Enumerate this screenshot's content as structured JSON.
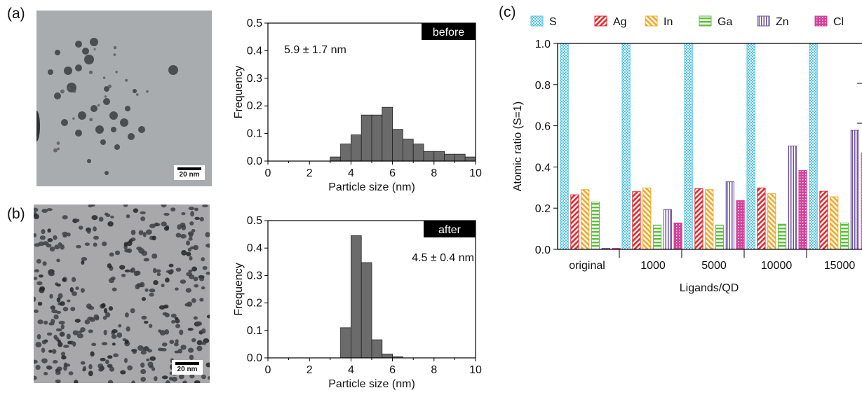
{
  "panel_labels": {
    "a": "(a)",
    "b": "(b)",
    "c": "(c)"
  },
  "tem_images": [
    {
      "panel": "a",
      "scale_bar_label": "20 nm"
    },
    {
      "panel": "b",
      "scale_bar_label": "20 nm"
    }
  ],
  "colors": {
    "S": "#4fc3e8",
    "Ag": "#e8262b",
    "In": "#f6a623",
    "Ga": "#5cbf3a",
    "Zn": "#6b4fa3",
    "Cl": "#d4409a",
    "hist_bar": "#6b6b6b"
  },
  "chart_data": [
    {
      "type": "bar",
      "panel": "a",
      "tag": "before",
      "annotation": "5.9 ± 1.7 nm",
      "xlabel": "Particle size (nm)",
      "ylabel": "Frequency",
      "xlim": [
        0,
        10
      ],
      "ylim": [
        0,
        0.5
      ],
      "xticks": [
        0,
        2,
        4,
        6,
        8,
        10
      ],
      "yticks": [
        0.0,
        0.1,
        0.2,
        0.3,
        0.4,
        0.5
      ],
      "ytick_labels": [
        "0.0",
        "0.1",
        "0.2",
        "0.3",
        "0.4",
        "0.5"
      ],
      "bin_width": 0.5,
      "bin_starts": [
        3.0,
        3.5,
        4.0,
        4.5,
        5.0,
        5.5,
        6.0,
        6.5,
        7.0,
        7.5,
        8.0,
        8.5,
        9.0,
        9.5
      ],
      "values": [
        0.015,
        0.062,
        0.095,
        0.167,
        0.167,
        0.195,
        0.115,
        0.08,
        0.062,
        0.035,
        0.035,
        0.025,
        0.025,
        0.015
      ]
    },
    {
      "type": "bar",
      "panel": "b",
      "tag": "after",
      "annotation": "4.5 ± 0.4 nm",
      "xlabel": "Particle size (nm)",
      "ylabel": "Frequency",
      "xlim": [
        0,
        10
      ],
      "ylim": [
        0,
        0.5
      ],
      "xticks": [
        0,
        2,
        4,
        6,
        8,
        10
      ],
      "yticks": [
        0.0,
        0.1,
        0.2,
        0.3,
        0.4,
        0.5
      ],
      "ytick_labels": [
        "0.0",
        "0.1",
        "0.2",
        "0.3",
        "0.4",
        "0.5"
      ],
      "bin_width": 0.5,
      "bin_starts": [
        3.5,
        4.0,
        4.5,
        5.0,
        5.5,
        6.0
      ],
      "values": [
        0.11,
        0.445,
        0.347,
        0.066,
        0.014,
        0.004
      ]
    },
    {
      "type": "bar",
      "panel": "c",
      "xlabel": "Ligands/QD",
      "ylabel": "Atomic ratio (S=1)",
      "ylim": [
        0,
        1.0
      ],
      "yticks": [
        0.0,
        0.2,
        0.4,
        0.6,
        0.8,
        1.0
      ],
      "ytick_labels": [
        "0.0",
        "0.2",
        "0.4",
        "0.6",
        "0.8",
        "1.0"
      ],
      "categories": [
        "original",
        "1000",
        "5000",
        "10000",
        "15000"
      ],
      "legend_position": "top",
      "series": [
        {
          "name": "S",
          "values": [
            1.0,
            1.0,
            1.0,
            1.0,
            1.0
          ]
        },
        {
          "name": "Ag",
          "values": [
            0.265,
            0.28,
            0.295,
            0.298,
            0.282
          ]
        },
        {
          "name": "In",
          "values": [
            0.29,
            0.298,
            0.29,
            0.27,
            0.255
          ]
        },
        {
          "name": "Ga",
          "values": [
            0.23,
            0.118,
            0.118,
            0.122,
            0.128
          ]
        },
        {
          "name": "Zn",
          "values": [
            0.005,
            0.193,
            0.328,
            0.502,
            0.578
          ]
        },
        {
          "name": "Cl",
          "values": [
            0.005,
            0.128,
            0.237,
            0.383,
            0.468
          ]
        }
      ]
    }
  ]
}
